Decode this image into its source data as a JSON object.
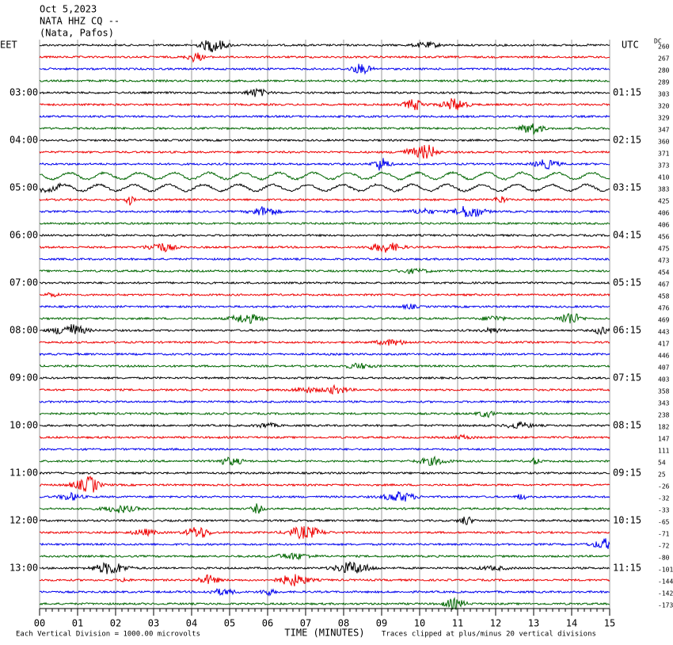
{
  "header": {
    "lines": [
      "Oct 5,2023",
      "NATA HHZ CQ --",
      "(Nata, Pafos)"
    ]
  },
  "left_zone": "EET",
  "right_zone": "UTC",
  "dc_title": "DC",
  "left_times": [
    "03:00",
    "04:00",
    "05:00",
    "06:00",
    "07:00",
    "08:00",
    "09:00",
    "10:00",
    "11:00",
    "12:00",
    "13:00"
  ],
  "right_times": [
    "01:15",
    "02:15",
    "03:15",
    "04:15",
    "05:15",
    "06:15",
    "07:15",
    "08:15",
    "09:15",
    "10:15",
    "11:15"
  ],
  "dc_offsets": [
    260,
    267,
    280,
    289,
    303,
    320,
    329,
    347,
    360,
    371,
    373,
    410,
    383,
    425,
    406,
    406,
    456,
    475,
    473,
    454,
    467,
    458,
    476,
    469,
    443,
    417,
    446,
    407,
    403,
    358,
    343,
    238,
    182,
    147,
    111,
    54,
    25,
    -26,
    -32,
    -33,
    -65,
    -71,
    -72,
    -80,
    -101,
    -144,
    -142,
    -173
  ],
  "x_axis": {
    "ticks": [
      "00",
      "01",
      "02",
      "03",
      "04",
      "05",
      "06",
      "07",
      "08",
      "09",
      "10",
      "11",
      "12",
      "13",
      "14",
      "15"
    ],
    "title": "TIME (MINUTES)"
  },
  "footer": {
    "left": "Each Vertical Division = 1000.00 microvolts",
    "right": "Traces clipped at plus/minus 20 vertical divisions"
  }
}
